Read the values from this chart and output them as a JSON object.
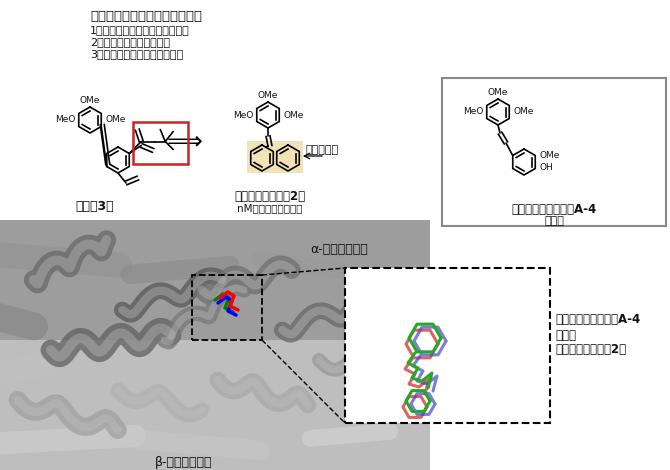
{
  "top_title": "ターシャリーブチルエステル基",
  "bullet1": "1）チューブリンと結合させない",
  "bullet2": "2）メタセシス反応を促進",
  "bullet3": "3）ベンゼン環形成反応を促進",
  "compound3_label": "原料（3）",
  "compound2_label": "抗がん活性物質（2）",
  "compound2_sub": "nMの解離定数で結合",
  "benzene_label": "ベンゼン環",
  "comb_label": "コンブレタスタチンA-4",
  "natural_label": "天然物",
  "alpha_label": "α-チューブリン",
  "beta_label": "β-チューブリン",
  "inset_label1": "コンブレタスタチンA-4",
  "inset_label2": "および",
  "inset_label3": "抗がん活性物質（2）",
  "white": "#ffffff",
  "black": "#000000",
  "red_border": "#cc2222",
  "gray_border": "#888888",
  "highlight_tan": "#f0e0b0",
  "bg_color": "#ffffff"
}
